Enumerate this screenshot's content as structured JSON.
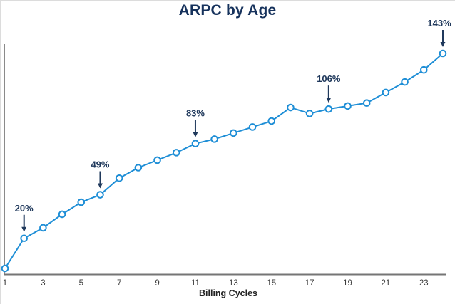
{
  "chart_data": {
    "type": "line",
    "title": "ARPC by Age",
    "xlabel": "Billing Cycles",
    "ylabel": "",
    "x": [
      1,
      2,
      3,
      4,
      5,
      6,
      7,
      8,
      9,
      10,
      11,
      12,
      13,
      14,
      15,
      16,
      17,
      18,
      19,
      20,
      21,
      22,
      23,
      24
    ],
    "values": [
      0,
      20,
      27,
      36,
      44,
      49,
      60,
      67,
      72,
      77,
      83,
      86,
      90,
      94,
      98,
      107,
      103,
      106,
      108,
      110,
      117,
      124,
      132,
      143
    ],
    "x_ticks": [
      "1",
      "3",
      "5",
      "7",
      "9",
      "11",
      "13",
      "15",
      "17",
      "19",
      "21",
      "23"
    ],
    "annotations": [
      {
        "x": 2,
        "label": "20%",
        "text_dx": 0
      },
      {
        "x": 6,
        "label": "49%",
        "text_dx": 0
      },
      {
        "x": 11,
        "label": "83%",
        "text_dx": 0
      },
      {
        "x": 18,
        "label": "106%",
        "text_dx": 0
      },
      {
        "x": 24,
        "label": "143%",
        "text_dx": -5
      }
    ],
    "xlim": [
      1,
      24
    ],
    "ylim": [
      0,
      143
    ],
    "grid": false,
    "legend": false,
    "marker": "open-circle",
    "colors": {
      "line": "#1e8ed6",
      "marker_fill": "#ffffff",
      "annotation": "#20395c",
      "title": "#16325c",
      "y_axis": "#8a8a8a",
      "x_axis": "#757575",
      "tick_label": "#3a3a3a",
      "axis_label": "#222222"
    }
  }
}
